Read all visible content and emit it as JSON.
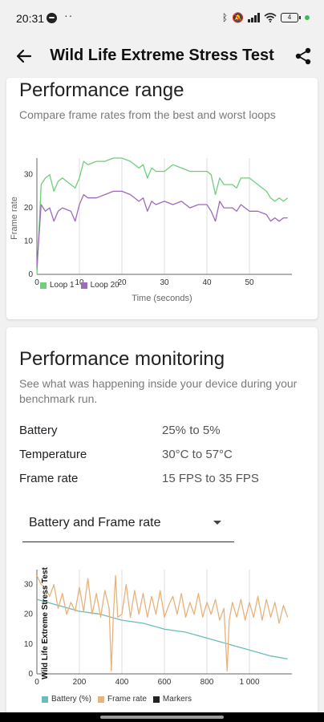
{
  "status_bar": {
    "time": "20:31",
    "dots": "··",
    "battery_level": "4"
  },
  "app_bar": {
    "title": "Wild Life Extreme Stress Test"
  },
  "performance_range": {
    "title": "Performance range",
    "description": "Compare frame rates from the best and worst loops"
  },
  "performance_monitoring": {
    "title": "Performance monitoring",
    "description": "See what was happening inside your device during your benchmark run.",
    "metrics": [
      {
        "label": "Battery",
        "value": "25% to 5%"
      },
      {
        "label": "Temperature",
        "value": "30°C to 57°C"
      },
      {
        "label": "Frame rate",
        "value": "15 FPS to 35 FPS"
      }
    ],
    "dropdown": {
      "selected": "Battery and Frame rate"
    }
  },
  "colors": {
    "loop1": "#6fcf7a",
    "loop20": "#9b6bbd",
    "battery": "#6cbcbc",
    "framerate": "#e8b27a",
    "markers": "#222222"
  },
  "chart_data": [
    {
      "type": "line",
      "title": "",
      "xlabel": "Time (seconds)",
      "ylabel": "Frame rate",
      "xlim": [
        0,
        60
      ],
      "ylim": [
        0,
        35
      ],
      "x_ticks": [
        "0",
        "10",
        "20",
        "30",
        "40",
        "50"
      ],
      "y_ticks": [
        "0",
        "10",
        "20",
        "30"
      ],
      "legend": "bottom-left",
      "grid": "vertical",
      "series": [
        {
          "name": "Loop 1",
          "x": [
            0,
            1,
            2,
            3,
            4,
            5,
            6,
            8,
            9,
            10,
            11,
            12,
            14,
            16,
            18,
            20,
            22,
            24,
            25,
            26,
            27,
            28,
            30,
            32,
            34,
            36,
            38,
            40,
            41,
            42,
            43,
            44,
            45,
            46,
            47,
            48,
            50,
            52,
            54,
            55,
            56,
            57,
            58,
            59
          ],
          "y": [
            0,
            27,
            29,
            30,
            25,
            28,
            29,
            27,
            26,
            29,
            34,
            33,
            34,
            34,
            35,
            35,
            34,
            32,
            33,
            29,
            32,
            31,
            31,
            33,
            32,
            31,
            31,
            31,
            30,
            24,
            29,
            27,
            27,
            27,
            26,
            29,
            29,
            27,
            25,
            23,
            22,
            23,
            22,
            23
          ]
        },
        {
          "name": "Loop 20",
          "x": [
            0,
            1,
            2,
            3,
            4,
            5,
            6,
            8,
            9,
            10,
            11,
            12,
            14,
            16,
            18,
            20,
            22,
            24,
            25,
            26,
            27,
            28,
            30,
            32,
            34,
            36,
            38,
            40,
            41,
            42,
            43,
            44,
            45,
            46,
            47,
            48,
            50,
            52,
            54,
            55,
            56,
            57,
            58,
            59
          ],
          "y": [
            2,
            21,
            19,
            20,
            16,
            19,
            20,
            19,
            16,
            21,
            24,
            23,
            23,
            24,
            25,
            25,
            24,
            22,
            23,
            19,
            22,
            21,
            22,
            21,
            22,
            20,
            21,
            21,
            19,
            16,
            22,
            20,
            20,
            20,
            19,
            21,
            19,
            19,
            18,
            16,
            17,
            16,
            17,
            17
          ]
        }
      ]
    },
    {
      "type": "line",
      "title": "",
      "xlabel": "",
      "ylabel": "Wild Life Extreme Stress Test",
      "xlim": [
        0,
        1200
      ],
      "ylim": [
        0,
        35
      ],
      "x_ticks": [
        "0",
        "200",
        "400",
        "600",
        "800",
        "1 000"
      ],
      "y_ticks": [
        "0",
        "10",
        "20",
        "30"
      ],
      "legend": "bottom-left",
      "grid": "vertical",
      "series": [
        {
          "name": "Battery (%)",
          "x": [
            0,
            100,
            200,
            300,
            400,
            500,
            600,
            700,
            800,
            900,
            1000,
            1100,
            1180
          ],
          "y": [
            25,
            23,
            21,
            20,
            18,
            17,
            15,
            14,
            12,
            10,
            8,
            6,
            5
          ]
        },
        {
          "name": "Frame rate",
          "x": [
            0,
            20,
            40,
            60,
            80,
            100,
            120,
            140,
            160,
            180,
            200,
            220,
            240,
            260,
            280,
            300,
            320,
            340,
            350,
            360,
            370,
            380,
            400,
            420,
            440,
            460,
            480,
            500,
            520,
            540,
            560,
            580,
            600,
            620,
            640,
            660,
            680,
            700,
            720,
            740,
            760,
            780,
            800,
            820,
            840,
            860,
            880,
            895,
            905,
            920,
            940,
            960,
            980,
            1000,
            1020,
            1040,
            1060,
            1080,
            1100,
            1120,
            1140,
            1160,
            1180
          ],
          "y": [
            33,
            30,
            29,
            26,
            30,
            22,
            27,
            20,
            24,
            21,
            29,
            21,
            32,
            20,
            27,
            19,
            28,
            22,
            1,
            20,
            33,
            19,
            20,
            30,
            19,
            28,
            20,
            27,
            19,
            26,
            20,
            28,
            19,
            23,
            26,
            20,
            27,
            19,
            24,
            20,
            27,
            19,
            24,
            20,
            25,
            18,
            22,
            1,
            18,
            24,
            19,
            25,
            18,
            24,
            19,
            26,
            18,
            25,
            19,
            24,
            17,
            23,
            19
          ]
        },
        {
          "name": "Markers",
          "x": [],
          "y": []
        }
      ]
    }
  ]
}
